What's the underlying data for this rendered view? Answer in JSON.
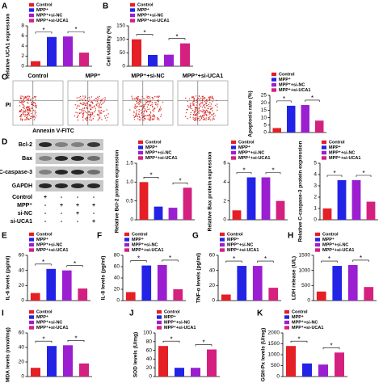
{
  "chart_data": [
    {
      "type": "bar",
      "label": "A",
      "y_label": "Relative UCA1 expression",
      "categories": [
        "Control",
        "MPP⁺",
        "MPP⁺+si-NC",
        "MPP⁺+si-UCA1"
      ],
      "colors": [
        "#e41f26",
        "#2323e6",
        "#9b1fd0",
        "#d4207f"
      ],
      "values": [
        1,
        5.8,
        5.9,
        2.7
      ],
      "ylim": [
        0,
        8
      ],
      "yticks": [
        0,
        2,
        4,
        6,
        8
      ],
      "annotations": [
        "*",
        "*"
      ]
    },
    {
      "type": "bar",
      "label": "B",
      "y_label": "Cell viability (%)",
      "categories": [
        "Control",
        "MPP⁺",
        "MPP⁺+si-NC",
        "MPP⁺+si-UCA1"
      ],
      "colors": [
        "#e41f26",
        "#2323e6",
        "#9b1fd0",
        "#d4207f"
      ],
      "values": [
        100,
        42,
        43,
        85
      ],
      "ylim": [
        0,
        150
      ],
      "yticks": [
        0,
        50,
        100,
        150
      ],
      "annotations": [
        "*",
        "*"
      ]
    },
    {
      "type": "bar",
      "y_label": "Apoptosis rate (%)",
      "categories": [
        "Control",
        "MPP⁺",
        "MPP⁺+si-NC",
        "MPP⁺+si-UCA1"
      ],
      "colors": [
        "#e41f26",
        "#2323e6",
        "#9b1fd0",
        "#d4207f"
      ],
      "values": [
        3,
        18,
        18.5,
        8
      ],
      "ylim": [
        0,
        25
      ],
      "yticks": [
        0,
        5,
        10,
        15,
        20,
        25
      ],
      "annotations": [
        "*",
        "*"
      ]
    },
    {
      "type": "bar",
      "y_label": "Relative Bcl-2 protein expression",
      "categories": [
        "Control",
        "MPP⁺",
        "MPP⁺+si-NC",
        "MPP⁺+si-UCA1"
      ],
      "colors": [
        "#e41f26",
        "#2323e6",
        "#9b1fd0",
        "#d4207f"
      ],
      "values": [
        1,
        0.35,
        0.32,
        0.85
      ],
      "ylim": [
        0,
        1.5
      ],
      "yticks": [
        0,
        0.5,
        {
          "value": 1,
          "label": "1.0"
        },
        1.5
      ],
      "annotations": [
        "*",
        "*"
      ]
    },
    {
      "type": "bar",
      "y_label": "Relative Bax protein expression",
      "categories": [
        "Control",
        "MPP⁺",
        "MPP⁺+si-NC",
        "MPP⁺+si-UCA1"
      ],
      "colors": [
        "#e41f26",
        "#2323e6",
        "#9b1fd0",
        "#d4207f"
      ],
      "values": [
        1,
        4.5,
        4.5,
        2
      ],
      "ylim": [
        0,
        6
      ],
      "yticks": [
        0,
        2,
        4,
        6
      ],
      "annotations": [
        "*",
        "*"
      ]
    },
    {
      "type": "bar",
      "y_label": "Relative C-caspase-3 protein expression",
      "categories": [
        "Control",
        "MPP⁺",
        "MPP⁺+si-NC",
        "MPP⁺+si-UCA1"
      ],
      "colors": [
        "#e41f26",
        "#2323e6",
        "#9b1fd0",
        "#d4207f"
      ],
      "values": [
        1,
        3.5,
        3.5,
        1.6
      ],
      "ylim": [
        0,
        5
      ],
      "yticks": [
        0,
        1,
        2,
        3,
        4,
        5
      ],
      "annotations": [
        "*",
        "*"
      ]
    },
    {
      "type": "bar",
      "label": "E",
      "y_label": "IL-6 levels (pg/ml)",
      "categories": [
        "Control",
        "MPP⁺",
        "MPP⁺+si-NC",
        "MPP⁺+si-UCA1"
      ],
      "colors": [
        "#e41f26",
        "#2323e6",
        "#9b1fd0",
        "#d4207f"
      ],
      "values": [
        10,
        42,
        40,
        16
      ],
      "ylim": [
        0,
        60
      ],
      "yticks": [
        0,
        20,
        40,
        60
      ],
      "annotations": [
        "*",
        "*"
      ]
    },
    {
      "type": "bar",
      "label": "F",
      "y_label": "IL-8 levels (pg/ml)",
      "categories": [
        "Control",
        "MPP⁺",
        "MPP⁺+si-NC",
        "MPP⁺+si-UCA1"
      ],
      "colors": [
        "#e41f26",
        "#2323e6",
        "#9b1fd0",
        "#d4207f"
      ],
      "values": [
        15,
        62,
        63,
        20
      ],
      "ylim": [
        0,
        80
      ],
      "yticks": [
        0,
        20,
        40,
        60,
        80
      ],
      "annotations": [
        "*",
        "*"
      ]
    },
    {
      "type": "bar",
      "label": "G",
      "y_label": "TNF-α levels (pg/ml)",
      "categories": [
        "Control",
        "MPP⁺",
        "MPP⁺+si-NC",
        "MPP⁺+si-UCA1"
      ],
      "colors": [
        "#e41f26",
        "#2323e6",
        "#9b1fd0",
        "#d4207f"
      ],
      "values": [
        8,
        46,
        46,
        17
      ],
      "ylim": [
        0,
        60
      ],
      "yticks": [
        0,
        20,
        40,
        60
      ],
      "annotations": [
        "*",
        "*"
      ]
    },
    {
      "type": "bar",
      "label": "H",
      "y_label": "LDH release (U/L)",
      "categories": [
        "Control",
        "MPP⁺",
        "MPP⁺+si-NC",
        "MPP⁺+si-UCA1"
      ],
      "colors": [
        "#e41f26",
        "#2323e6",
        "#9b1fd0",
        "#d4207f"
      ],
      "values": [
        300,
        1150,
        1180,
        450
      ],
      "ylim": [
        0,
        1500
      ],
      "yticks": [
        0,
        500,
        1000,
        1500
      ],
      "annotations": [
        "*",
        "*"
      ]
    },
    {
      "type": "bar",
      "label": "I",
      "y_label": "MDA levels (nmol/mg)",
      "categories": [
        "Control",
        "MPP⁺",
        "MPP⁺+si-NC",
        "MPP⁺+si-UCA1"
      ],
      "colors": [
        "#e41f26",
        "#2323e6",
        "#9b1fd0",
        "#d4207f"
      ],
      "values": [
        12,
        42,
        43,
        18
      ],
      "ylim": [
        0,
        60
      ],
      "yticks": [
        0,
        20,
        40,
        60
      ],
      "annotations": [
        "*",
        "*"
      ]
    },
    {
      "type": "bar",
      "label": "J",
      "y_label": "SOD levels (U/mg)",
      "categories": [
        "Control",
        "MPP⁺",
        "MPP⁺+si-NC",
        "MPP⁺+si-UCA1"
      ],
      "colors": [
        "#e41f26",
        "#2323e6",
        "#9b1fd0",
        "#d4207f"
      ],
      "values": [
        70,
        20,
        20,
        62
      ],
      "ylim": [
        0,
        100
      ],
      "yticks": [
        0,
        20,
        40,
        60,
        80,
        100
      ],
      "annotations": [
        "*",
        "*"
      ]
    },
    {
      "type": "bar",
      "label": "K",
      "y_label": "GSH-Px levels (U/mg)",
      "categories": [
        "Control",
        "MPP⁺",
        "MPP⁺+si-NC",
        "MPP⁺+si-UCA1"
      ],
      "colors": [
        "#e41f26",
        "#2323e6",
        "#9b1fd0",
        "#d4207f"
      ],
      "values": [
        1400,
        600,
        550,
        1100
      ],
      "ylim": [
        0,
        2000
      ],
      "yticks": [
        0,
        500,
        1000,
        1500,
        2000
      ],
      "annotations": [
        "*",
        "*"
      ]
    }
  ],
  "flow": {
    "label": "C",
    "titles": [
      "Control",
      "MPP⁺",
      "MPP⁺+si-NC",
      "MPP⁺+si-UCA1"
    ],
    "y_label": "PI",
    "x_label": "Annexin V-FITC"
  },
  "blot": {
    "label": "D",
    "bands": [
      "Bcl-2",
      "Bax",
      "C-caspase-3",
      "GAPDH"
    ],
    "rows": [
      {
        "name": "Control",
        "signs": [
          "+",
          "-",
          "-",
          "-"
        ]
      },
      {
        "name": "MPP⁺",
        "signs": [
          "-",
          "+",
          "+",
          "+"
        ]
      },
      {
        "name": "si-NC",
        "signs": [
          "-",
          "-",
          "+",
          "-"
        ]
      },
      {
        "name": "si-UCA1",
        "signs": [
          "-",
          "-",
          "-",
          "+"
        ]
      }
    ]
  }
}
